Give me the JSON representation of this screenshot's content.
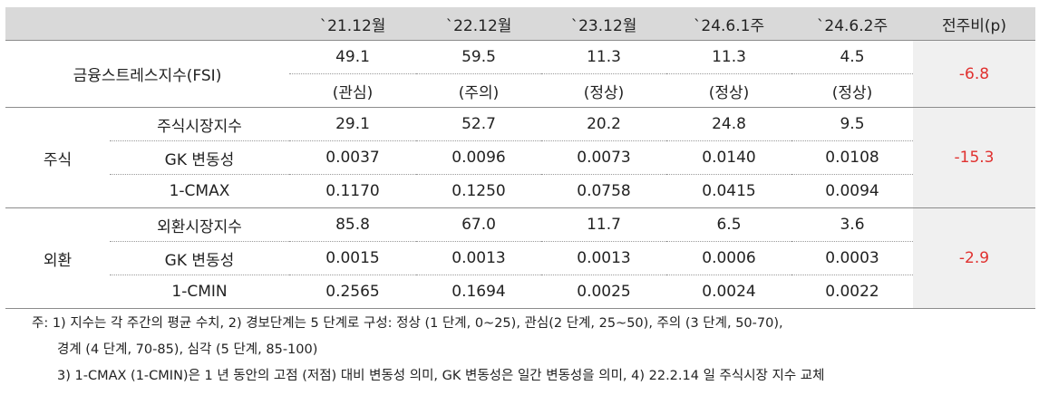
{
  "header": {
    "columns": [
      "",
      "",
      "`21.12월",
      "`22.12월",
      "`23.12월",
      "`24.6.1주",
      "`24.6.2주",
      "전주비(p)"
    ]
  },
  "fsi": {
    "label": "금융스트레스지수(FSI)",
    "values": [
      "49.1",
      "59.5",
      "11.3",
      "11.3",
      "4.5"
    ],
    "stages": [
      "(관심)",
      "(주의)",
      "(정상)",
      "(정상)",
      "(정상)"
    ],
    "change": "-6.8"
  },
  "stock": {
    "group": "주식",
    "change": "-15.3",
    "rows": [
      {
        "label": "주식시장지수",
        "values": [
          "29.1",
          "52.7",
          "20.2",
          "24.8",
          "9.5"
        ]
      },
      {
        "label": "GK 변동성",
        "values": [
          "0.0037",
          "0.0096",
          "0.0073",
          "0.0140",
          "0.0108"
        ]
      },
      {
        "label": "1-CMAX",
        "values": [
          "0.1170",
          "0.1250",
          "0.0758",
          "0.0415",
          "0.0094"
        ]
      }
    ]
  },
  "fx": {
    "group": "외환",
    "change": "-2.9",
    "rows": [
      {
        "label": "외환시장지수",
        "values": [
          "85.8",
          "67.0",
          "11.7",
          "6.5",
          "3.6"
        ]
      },
      {
        "label": "GK 변동성",
        "values": [
          "0.0015",
          "0.0013",
          "0.0013",
          "0.0006",
          "0.0003"
        ]
      },
      {
        "label": "1-CMIN",
        "values": [
          "0.2565",
          "0.1694",
          "0.0025",
          "0.0024",
          "0.0022"
        ]
      }
    ]
  },
  "notes": {
    "line1": "주: 1) 지수는 각 주간의 평균 수치, 2) 경보단계는 5 단계로 구성: 정상 (1 단계, 0~25), 관심(2 단계, 25~50), 주의 (3 단계, 50-70),",
    "line2": "경계 (4 단계, 70-85), 심각 (5 단계, 85-100)",
    "line3": "3) 1-CMAX (1-CMIN)은 1 년 동안의 고점 (저점) 대비 변동성 의미, GK 변동성은 일간 변동성을 의미, 4) 22.2.14 일 주식시장 지수 교체"
  },
  "colors": {
    "header_bg": "#d9d9d9",
    "change_bg": "#f0f0f0",
    "change_text": "#e0312f"
  }
}
